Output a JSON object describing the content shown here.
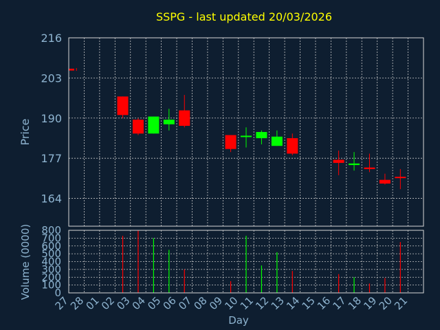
{
  "chart_data": {
    "type": "candlestick",
    "title": "SSPG - last updated 20/03/2026",
    "xlabel": "Day",
    "price_panel": {
      "ylabel": "Price",
      "yticks": [
        164,
        177,
        190,
        203,
        216
      ],
      "ylim": [
        155,
        216
      ]
    },
    "volume_panel": {
      "ylabel": "Volume (0000)",
      "yticks": [
        0,
        100,
        200,
        300,
        400,
        500,
        600,
        700,
        800
      ],
      "ylim": [
        0,
        800
      ]
    },
    "xticks": [
      "27",
      "28",
      "01",
      "02",
      "03",
      "04",
      "05",
      "06",
      "07",
      "08",
      "09",
      "10",
      "11",
      "12",
      "13",
      "14",
      "15",
      "16",
      "17",
      "18",
      "19",
      "20",
      "21"
    ],
    "grid": true,
    "colors": {
      "background": "#0e1e30",
      "title": "#ffff00",
      "axis_text": "#8eb4d0",
      "frame": "#d8d8d8",
      "grid": "#c8c8c8",
      "up": "#00ff00",
      "down": "#ff0000"
    },
    "candles": [
      {
        "day": "27",
        "open": 206.0,
        "high": 206.2,
        "low": 205.3,
        "close": 205.4,
        "volume": 0
      },
      {
        "day": "02",
        "open": 197.0,
        "high": 197.0,
        "low": 190.0,
        "close": 191.0,
        "volume": 730
      },
      {
        "day": "03",
        "open": 189.5,
        "high": 190.0,
        "low": 184.5,
        "close": 185.0,
        "volume": 800
      },
      {
        "day": "04",
        "open": 185.0,
        "high": 190.5,
        "low": 185.0,
        "close": 190.5,
        "volume": 700
      },
      {
        "day": "05",
        "open": 188.0,
        "high": 193.0,
        "low": 186.0,
        "close": 189.5,
        "volume": 550
      },
      {
        "day": "06",
        "open": 192.5,
        "high": 197.5,
        "low": 187.0,
        "close": 187.5,
        "volume": 300
      },
      {
        "day": "09",
        "open": 184.5,
        "high": 184.5,
        "low": 179.0,
        "close": 180.0,
        "volume": 150
      },
      {
        "day": "10",
        "open": 184.0,
        "high": 187.0,
        "low": 180.5,
        "close": 184.3,
        "volume": 730
      },
      {
        "day": "11",
        "open": 183.5,
        "high": 186.0,
        "low": 181.5,
        "close": 185.5,
        "volume": 350
      },
      {
        "day": "12",
        "open": 181.0,
        "high": 186.0,
        "low": 181.0,
        "close": 184.0,
        "volume": 520
      },
      {
        "day": "13",
        "open": 183.5,
        "high": 185.0,
        "low": 178.0,
        "close": 178.5,
        "volume": 280
      },
      {
        "day": "16",
        "open": 176.5,
        "high": 179.5,
        "low": 171.5,
        "close": 175.5,
        "volume": 240
      },
      {
        "day": "17",
        "open": 174.8,
        "high": 179.0,
        "low": 173.0,
        "close": 175.3,
        "volume": 200
      },
      {
        "day": "18",
        "open": 174.0,
        "high": 178.5,
        "low": 172.5,
        "close": 173.5,
        "volume": 120
      },
      {
        "day": "19",
        "open": 170.0,
        "high": 172.0,
        "low": 168.5,
        "close": 168.8,
        "volume": 190
      },
      {
        "day": "20",
        "open": 171.0,
        "high": 173.5,
        "low": 167.0,
        "close": 170.6,
        "volume": 650
      }
    ]
  }
}
